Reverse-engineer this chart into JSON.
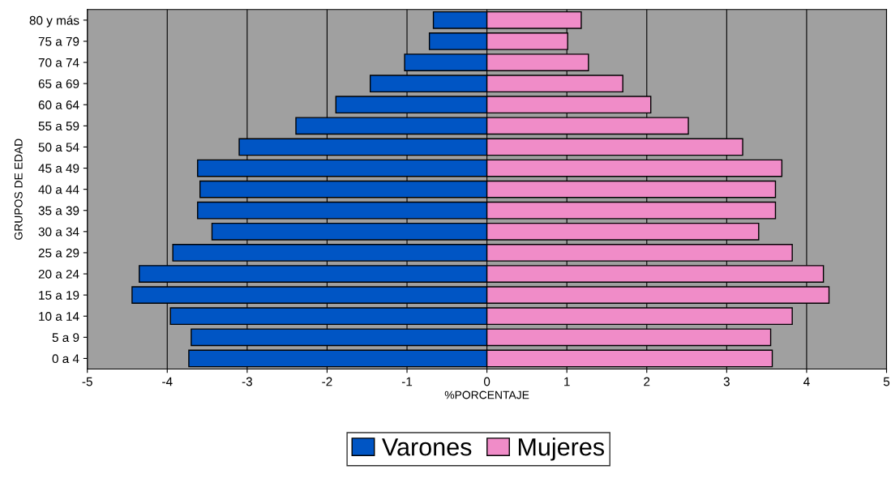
{
  "chart_data": {
    "type": "bar",
    "orientation": "horizontal",
    "xlabel": "%PORCENTAJE",
    "ylabel": "GRUPOS DE EDAD",
    "categories": [
      "80 y más",
      "75 a 79",
      "70 a 74",
      "65 a 69",
      "60 a 64",
      "55 a 59",
      "50 a 54",
      "45 a 49",
      "40 a 44",
      "35 a 39",
      "30 a 34",
      "25 a 29",
      "20 a 24",
      "15 a 19",
      "10 a 14",
      "5 a 9",
      "0 a 4"
    ],
    "series": [
      {
        "name": "Varones",
        "color": "#0055c4",
        "values": [
          -0.67,
          -0.72,
          -1.03,
          -1.46,
          -1.89,
          -2.39,
          -3.1,
          -3.62,
          -3.59,
          -3.62,
          -3.44,
          -3.93,
          -4.35,
          -4.44,
          -3.96,
          -3.7,
          -3.73
        ]
      },
      {
        "name": "Mujeres",
        "color": "#f08cc8",
        "values": [
          1.18,
          1.01,
          1.27,
          1.7,
          2.05,
          2.52,
          3.2,
          3.69,
          3.61,
          3.61,
          3.4,
          3.82,
          4.21,
          4.28,
          3.82,
          3.55,
          3.57
        ]
      }
    ],
    "xlim": [
      -5,
      5
    ],
    "xticks": [
      -5,
      -4,
      -3,
      -2,
      -1,
      0,
      1,
      2,
      3,
      4,
      5
    ],
    "grid": "x",
    "legend": "bottom",
    "stacked": true
  }
}
